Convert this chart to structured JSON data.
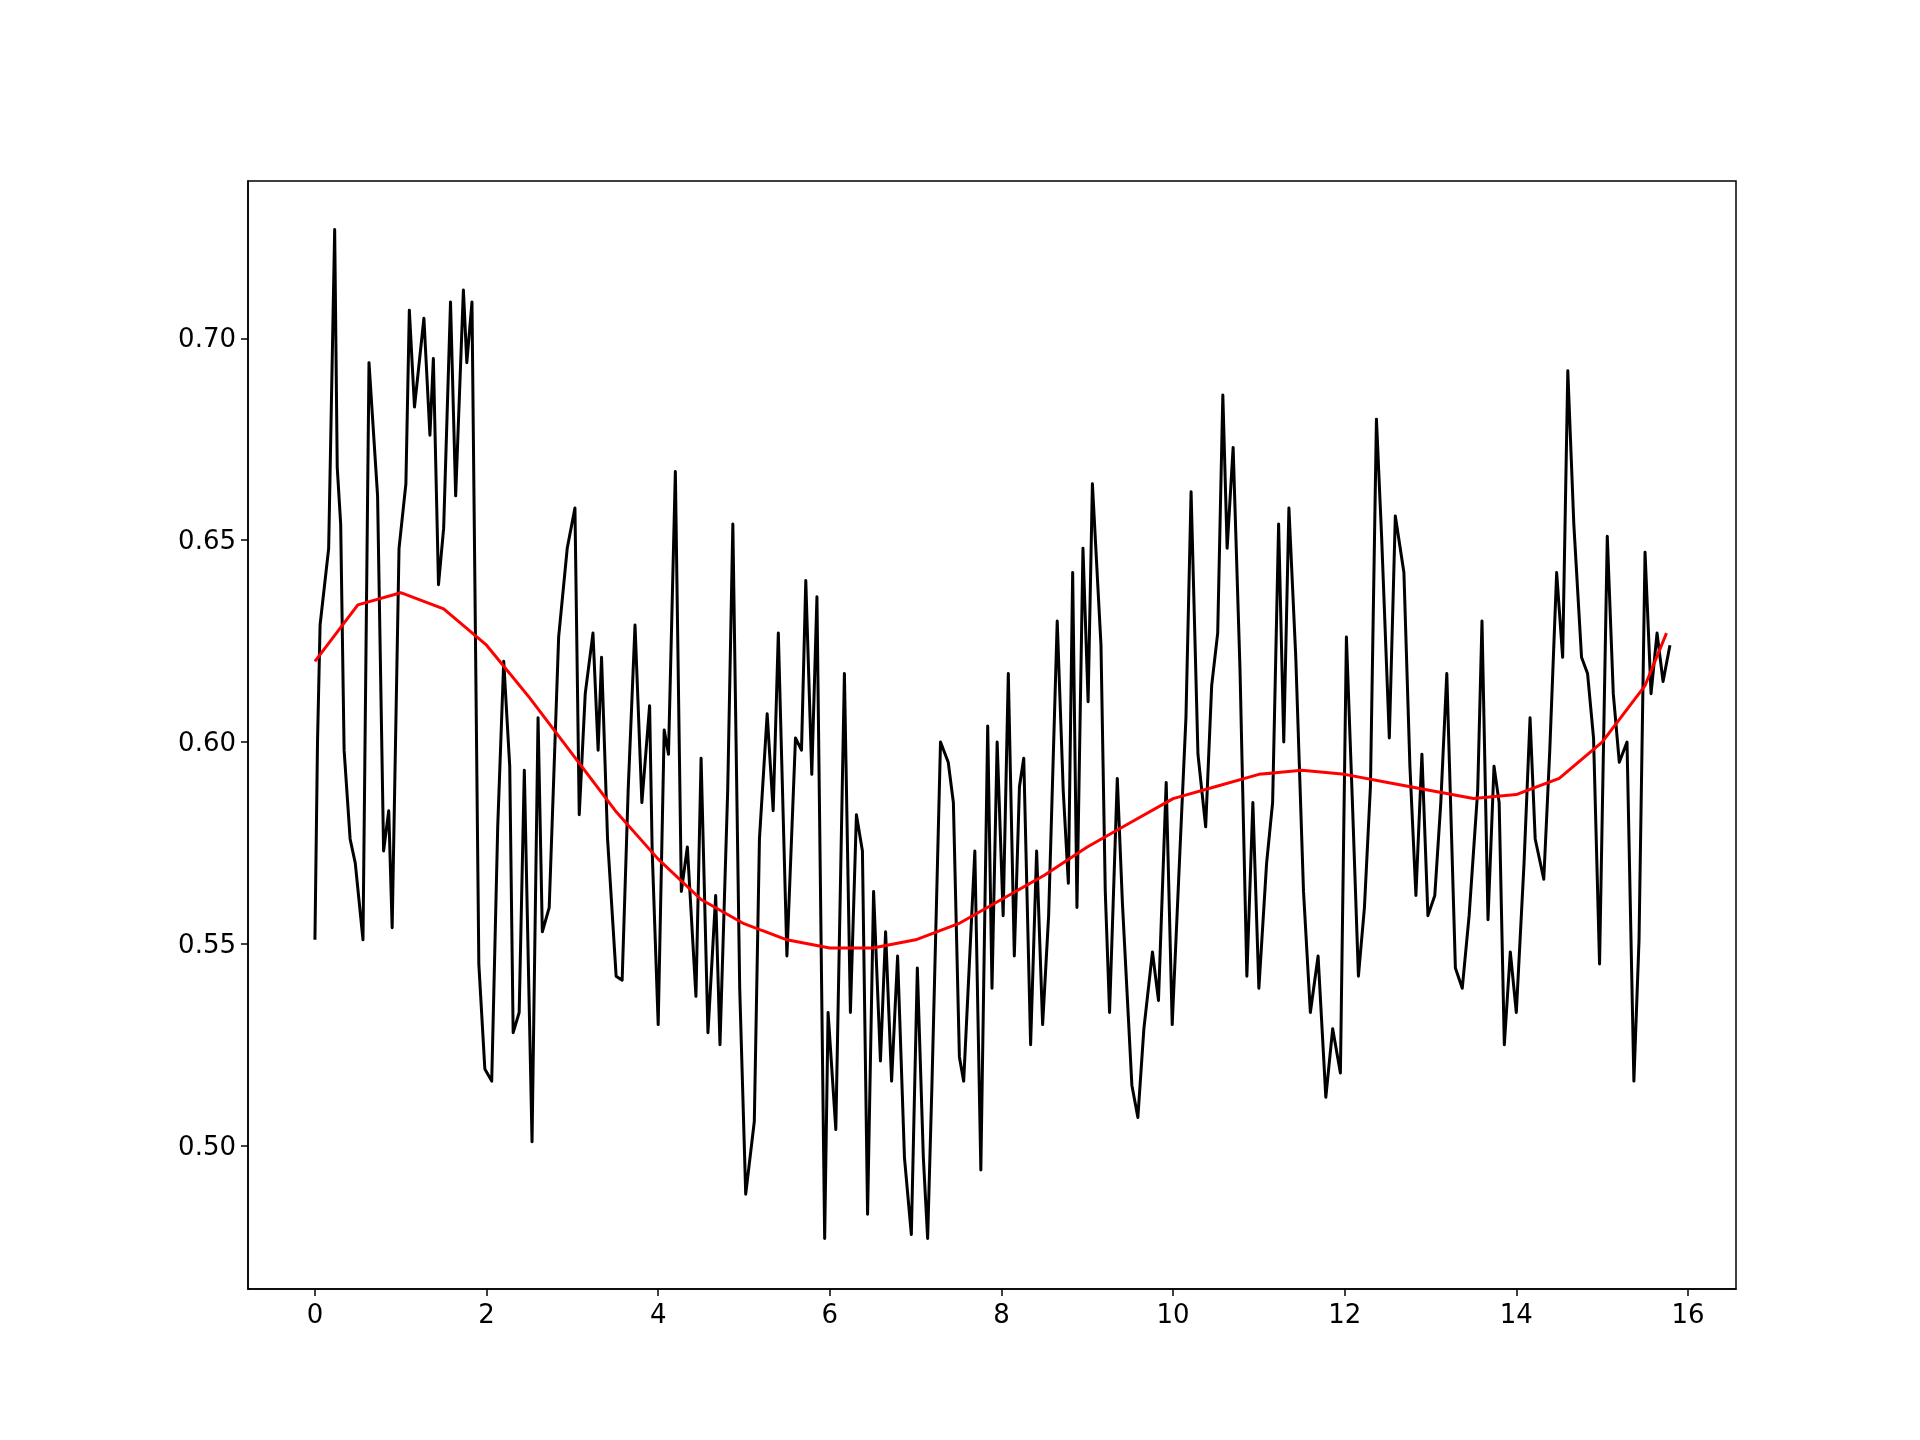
{
  "chart_data": {
    "type": "line",
    "xlim": [
      -0.78,
      16.56
    ],
    "ylim": [
      0.4645,
      0.739
    ],
    "xticks": [
      0,
      2,
      4,
      6,
      8,
      10,
      12,
      14,
      16
    ],
    "yticks": [
      {
        "value": 0.5,
        "label": "0.50"
      },
      {
        "value": 0.55,
        "label": "0.55"
      },
      {
        "value": 0.6,
        "label": "0.60"
      },
      {
        "value": 0.65,
        "label": "0.65"
      },
      {
        "value": 0.7,
        "label": "0.70"
      }
    ],
    "marker": "none",
    "line_style": "solid",
    "series": [
      {
        "color": "#000000",
        "x": [
          0,
          0.03,
          0.06,
          0.16,
          0.23,
          0.26,
          0.3,
          0.34,
          0.41,
          0.47,
          0.56,
          0.63,
          0.73,
          0.8,
          0.86,
          0.9,
          0.98,
          1.06,
          1.1,
          1.16,
          1.27,
          1.34,
          1.38,
          1.44,
          1.5,
          1.58,
          1.64,
          1.73,
          1.77,
          1.83,
          1.91,
          1.98,
          2.06,
          2.13,
          2.2,
          2.27,
          2.31,
          2.38,
          2.44,
          2.53,
          2.6,
          2.65,
          2.73,
          2.84,
          2.94,
          3.03,
          3.08,
          3.15,
          3.24,
          3.3,
          3.34,
          3.41,
          3.51,
          3.58,
          3.65,
          3.73,
          3.81,
          3.9,
          3.93,
          4.0,
          4.07,
          4.12,
          4.2,
          4.27,
          4.34,
          4.44,
          4.5,
          4.58,
          4.67,
          4.72,
          4.81,
          4.87,
          4.95,
          5.02,
          5.12,
          5.18,
          5.27,
          5.34,
          5.4,
          5.5,
          5.6,
          5.67,
          5.72,
          5.79,
          5.85,
          5.94,
          5.98,
          6.07,
          6.17,
          6.24,
          6.31,
          6.38,
          6.44,
          6.51,
          6.59,
          6.65,
          6.72,
          6.79,
          6.87,
          6.95,
          7.02,
          7.09,
          7.14,
          7.19,
          7.29,
          7.38,
          7.44,
          7.51,
          7.56,
          7.69,
          7.76,
          7.84,
          7.89,
          7.95,
          8.02,
          8.08,
          8.15,
          8.21,
          8.26,
          8.34,
          8.41,
          8.48,
          8.55,
          8.65,
          8.72,
          8.78,
          8.83,
          8.88,
          8.95,
          9.01,
          9.06,
          9.16,
          9.21,
          9.26,
          9.35,
          9.41,
          9.52,
          9.59,
          9.66,
          9.76,
          9.83,
          9.92,
          9.99,
          10.08,
          10.15,
          10.21,
          10.29,
          10.38,
          10.45,
          10.52,
          10.58,
          10.63,
          10.7,
          10.78,
          10.86,
          10.93,
          11.0,
          11.09,
          11.16,
          11.23,
          11.29,
          11.35,
          11.43,
          11.52,
          11.6,
          11.69,
          11.78,
          11.86,
          11.95,
          12.02,
          12.09,
          12.16,
          12.23,
          12.3,
          12.37,
          12.43,
          12.52,
          12.59,
          12.69,
          12.76,
          12.83,
          12.9,
          12.97,
          13.05,
          13.12,
          13.19,
          13.29,
          13.37,
          13.45,
          13.55,
          13.6,
          13.67,
          13.74,
          13.8,
          13.86,
          13.93,
          14.0,
          14.09,
          14.16,
          14.22,
          14.32,
          14.39,
          14.47,
          14.54,
          14.6,
          14.67,
          14.76,
          14.83,
          14.9,
          14.97,
          15.06,
          15.13,
          15.2,
          15.29,
          15.37,
          15.43,
          15.5,
          15.57,
          15.64,
          15.71,
          15.79
        ],
        "values": [
          0.551,
          0.6,
          0.629,
          0.648,
          0.727,
          0.668,
          0.654,
          0.598,
          0.576,
          0.57,
          0.551,
          0.694,
          0.661,
          0.573,
          0.583,
          0.554,
          0.648,
          0.664,
          0.707,
          0.683,
          0.705,
          0.676,
          0.695,
          0.639,
          0.653,
          0.709,
          0.661,
          0.712,
          0.694,
          0.709,
          0.545,
          0.519,
          0.516,
          0.579,
          0.62,
          0.594,
          0.528,
          0.533,
          0.593,
          0.501,
          0.606,
          0.553,
          0.559,
          0.626,
          0.648,
          0.658,
          0.582,
          0.612,
          0.627,
          0.598,
          0.621,
          0.576,
          0.542,
          0.541,
          0.588,
          0.629,
          0.585,
          0.609,
          0.573,
          0.53,
          0.603,
          0.597,
          0.667,
          0.563,
          0.574,
          0.537,
          0.596,
          0.528,
          0.562,
          0.525,
          0.588,
          0.654,
          0.539,
          0.488,
          0.506,
          0.576,
          0.607,
          0.583,
          0.627,
          0.547,
          0.601,
          0.598,
          0.64,
          0.592,
          0.636,
          0.477,
          0.533,
          0.504,
          0.617,
          0.533,
          0.582,
          0.573,
          0.483,
          0.563,
          0.521,
          0.553,
          0.516,
          0.547,
          0.497,
          0.478,
          0.544,
          0.497,
          0.477,
          0.515,
          0.6,
          0.595,
          0.585,
          0.522,
          0.516,
          0.573,
          0.494,
          0.604,
          0.539,
          0.6,
          0.557,
          0.617,
          0.547,
          0.589,
          0.596,
          0.525,
          0.573,
          0.53,
          0.557,
          0.63,
          0.588,
          0.565,
          0.642,
          0.559,
          0.648,
          0.61,
          0.664,
          0.624,
          0.563,
          0.533,
          0.591,
          0.56,
          0.515,
          0.507,
          0.529,
          0.548,
          0.536,
          0.59,
          0.53,
          0.573,
          0.606,
          0.662,
          0.597,
          0.579,
          0.614,
          0.627,
          0.686,
          0.648,
          0.673,
          0.618,
          0.542,
          0.585,
          0.539,
          0.57,
          0.585,
          0.654,
          0.6,
          0.658,
          0.621,
          0.563,
          0.533,
          0.547,
          0.512,
          0.529,
          0.518,
          0.626,
          0.585,
          0.542,
          0.559,
          0.589,
          0.68,
          0.651,
          0.601,
          0.656,
          0.642,
          0.594,
          0.562,
          0.597,
          0.557,
          0.562,
          0.585,
          0.617,
          0.544,
          0.539,
          0.557,
          0.588,
          0.63,
          0.556,
          0.594,
          0.585,
          0.525,
          0.548,
          0.533,
          0.57,
          0.606,
          0.576,
          0.566,
          0.598,
          0.642,
          0.621,
          0.692,
          0.654,
          0.621,
          0.617,
          0.601,
          0.545,
          0.651,
          0.612,
          0.595,
          0.6,
          0.516,
          0.551,
          0.647,
          0.612,
          0.627,
          0.615,
          0.624
        ]
      },
      {
        "color": "#ff0000",
        "x": [
          0,
          0.5,
          1,
          1.5,
          2,
          2.5,
          3,
          3.5,
          4,
          4.5,
          5,
          5.5,
          6,
          6.5,
          7,
          7.5,
          8,
          8.5,
          9,
          9.5,
          10,
          10.5,
          11,
          11.5,
          12,
          12.5,
          13,
          13.5,
          14,
          14.5,
          15,
          15.5,
          15.75
        ],
        "values": [
          0.62,
          0.634,
          0.637,
          0.633,
          0.624,
          0.611,
          0.597,
          0.583,
          0.571,
          0.561,
          0.555,
          0.551,
          0.549,
          0.549,
          0.551,
          0.555,
          0.561,
          0.567,
          0.574,
          0.58,
          0.586,
          0.589,
          0.592,
          0.593,
          0.592,
          0.59,
          0.588,
          0.586,
          0.587,
          0.591,
          0.6,
          0.614,
          0.627
        ]
      }
    ]
  }
}
